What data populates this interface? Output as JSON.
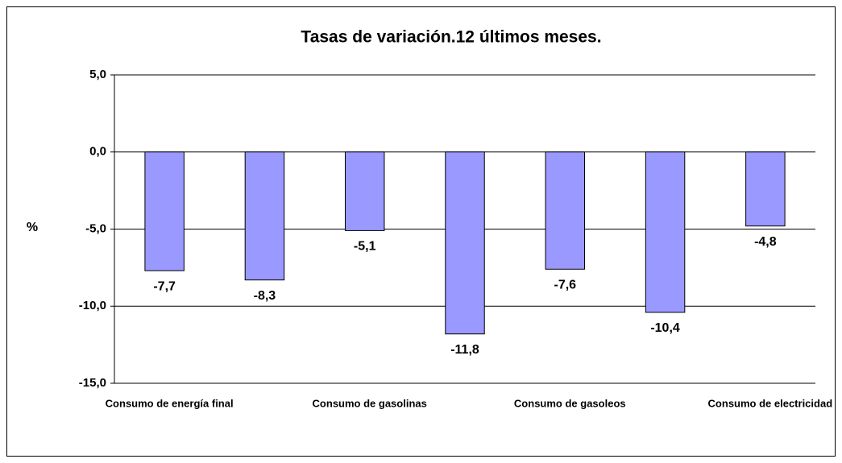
{
  "chart_data": {
    "type": "bar",
    "title": "Tasas de variación.12 últimos meses.",
    "y_label": "%",
    "categories": [
      "Consumo de energía final",
      null,
      "Consumo de gasolinas",
      null,
      "Consumo de gasoleos",
      null,
      "Consumo de electricidad"
    ],
    "values": [
      -7.7,
      -8.3,
      -5.1,
      -11.8,
      -7.6,
      -10.4,
      -4.8
    ],
    "value_labels": [
      "-7,7",
      "-8,3",
      "-5,1",
      "-11,8",
      "-7,6",
      "-10,4",
      "-4,8"
    ],
    "color": "#9999ff",
    "ylim": [
      -15,
      5
    ],
    "yticks": [
      {
        "value": 5,
        "label": "5,0"
      },
      {
        "value": 0,
        "label": "0,0"
      },
      {
        "value": -5,
        "label": "-5,0"
      },
      {
        "value": -10,
        "label": "-10,0"
      },
      {
        "value": -15,
        "label": "-15,0"
      }
    ],
    "grid": true
  }
}
